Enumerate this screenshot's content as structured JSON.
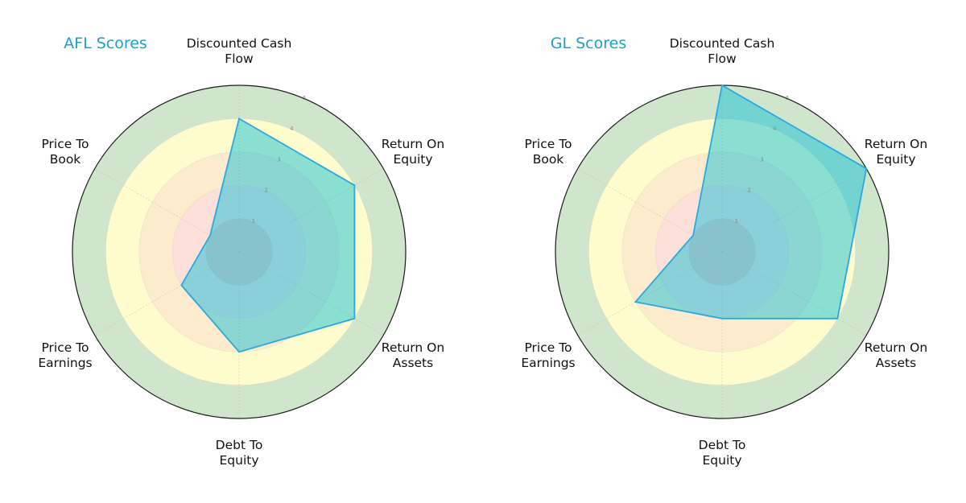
{
  "chart_data": [
    {
      "type": "radar",
      "title": "AFL Scores",
      "categories": [
        "Discounted Cash Flow",
        "Return On Equity",
        "Return On Assets",
        "Debt To Equity",
        "Price To Earnings",
        "Price To Book"
      ],
      "series": [
        {
          "name": "AFL",
          "values": [
            4,
            4,
            4,
            3,
            2,
            1
          ]
        }
      ],
      "rlim": [
        0,
        5
      ],
      "rticks": [
        1,
        2,
        3,
        4,
        5
      ],
      "grid": true,
      "legend": null
    },
    {
      "type": "radar",
      "title": "GL Scores",
      "categories": [
        "Discounted Cash Flow",
        "Return On Equity",
        "Return On Assets",
        "Debt To Equity",
        "Price To Earnings",
        "Price To Book"
      ],
      "series": [
        {
          "name": "GL",
          "values": [
            5,
            5,
            4,
            2,
            3,
            1
          ]
        }
      ],
      "rlim": [
        0,
        5
      ],
      "rticks": [
        1,
        2,
        3,
        4,
        5
      ],
      "grid": true,
      "legend": null
    }
  ],
  "axis_label_lines": [
    [
      "Discounted Cash",
      "Flow"
    ],
    [
      "Return On",
      "Equity"
    ],
    [
      "Return On",
      "Assets"
    ],
    [
      "Debt To",
      "Equity"
    ],
    [
      "Price To",
      "Earnings"
    ],
    [
      "Price To",
      "Book"
    ]
  ],
  "style": {
    "title_color": "#1ea0c8",
    "polygon_fill": "#00bcd4",
    "polygon_fill_opacity": 0.45,
    "polygon_stroke": "#2aa8e0",
    "ring_colors": [
      "#f7c9c4",
      "#fde0da",
      "#fdebcd",
      "#fefccc",
      "#cfe5cc"
    ],
    "outline_color": "#1a1a1a"
  }
}
